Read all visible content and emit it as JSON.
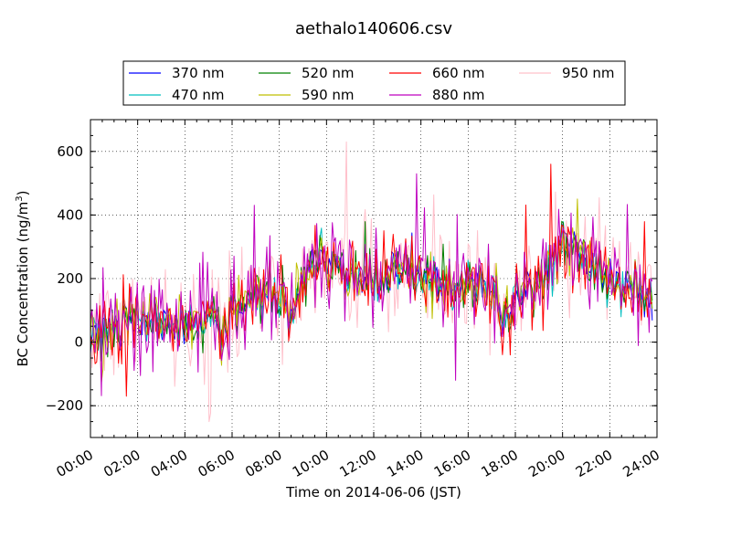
{
  "chart_data": {
    "type": "line",
    "title": "aethalo140606.csv",
    "xlabel": "Time on 2014-06-06 (JST)",
    "ylabel_main": "BC Concentration (ng/m",
    "ylabel_sup": "3",
    "ylabel_close": ")",
    "xlim": [
      "00:00",
      "24:00"
    ],
    "ylim": [
      -300,
      700
    ],
    "xticks": [
      "00:00",
      "02:00",
      "04:00",
      "06:00",
      "08:00",
      "10:00",
      "12:00",
      "14:00",
      "16:00",
      "18:00",
      "20:00",
      "22:00",
      "24:00"
    ],
    "yticks": [
      -200,
      0,
      200,
      400,
      600
    ],
    "grid": true,
    "legend_position": "top",
    "series": [
      {
        "name": "370 nm",
        "color": "#0000ff"
      },
      {
        "name": "470 nm",
        "color": "#00bfbf"
      },
      {
        "name": "520 nm",
        "color": "#008000"
      },
      {
        "name": "590 nm",
        "color": "#bfbf00"
      },
      {
        "name": "660 nm",
        "color": "#ff0000"
      },
      {
        "name": "880 nm",
        "color": "#bf00bf"
      },
      {
        "name": "950 nm",
        "color": "#ffc0cb"
      }
    ],
    "x_hours": [
      0,
      0.5,
      1,
      1.5,
      2,
      2.5,
      3,
      3.5,
      4,
      4.5,
      5,
      5.5,
      6,
      6.5,
      7,
      7.5,
      8,
      8.5,
      9,
      9.5,
      10,
      10.5,
      11,
      11.5,
      12,
      12.5,
      13,
      13.5,
      14,
      14.5,
      15,
      15.5,
      16,
      16.5,
      17,
      17.5,
      18,
      18.5,
      19,
      19.5,
      20,
      20.5,
      21,
      21.5,
      22,
      22.5,
      23,
      23.5,
      24
    ],
    "typical_level": [
      40,
      50,
      60,
      50,
      70,
      75,
      80,
      60,
      50,
      60,
      80,
      60,
      100,
      120,
      160,
      170,
      140,
      90,
      200,
      230,
      240,
      230,
      210,
      200,
      220,
      210,
      230,
      240,
      220,
      200,
      170,
      160,
      180,
      190,
      150,
      100,
      130,
      160,
      190,
      260,
      300,
      310,
      260,
      220,
      200,
      180,
      170,
      160,
      150
    ],
    "notable_peaks": [
      {
        "series": "950 nm",
        "time": "10:50",
        "value": 630
      },
      {
        "series": "660 nm",
        "time": "19:30",
        "value": 560
      },
      {
        "series": "880 nm",
        "time": "13:50",
        "value": 530
      },
      {
        "series": "660 nm",
        "time": "01:30",
        "value": -170
      },
      {
        "series": "950 nm",
        "time": "05:00",
        "value": -250
      },
      {
        "series": "880 nm",
        "time": "15:30",
        "value": -120
      }
    ]
  }
}
